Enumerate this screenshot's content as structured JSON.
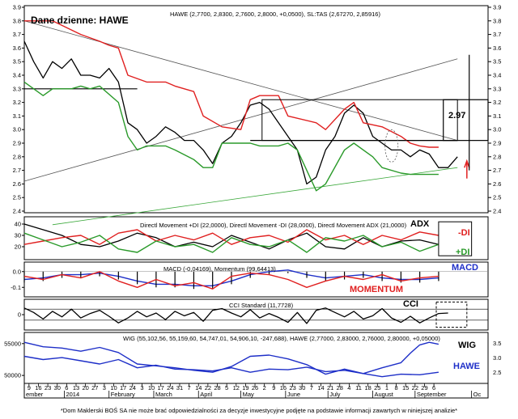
{
  "title": "Dane dzienne: HAWE",
  "footer": "*Dom Maklerski BOŚ SA nie może brać odpowiedzialności za decyzje inwestycyjne podjęte na podstawie informacji zawartych w niniejszej analizie*",
  "colors": {
    "price": "#000000",
    "upper": "#e02020",
    "lower": "#2a9a2a",
    "plus_di": "#2a9a2a",
    "minus_di": "#e02020",
    "adx": "#000000",
    "macd": "#1e2fc8",
    "momentum": "#e02020",
    "wig": "#1e2fc8",
    "trend": "#555555",
    "support": "#3aa83a",
    "annot_red": "#e02020",
    "annot_blue": "#1e2fc8"
  },
  "chart_data": [
    {
      "type": "line",
      "panel": "price",
      "legend": "HAWE (2,7700, 2,8300, 2,7600, 2,8000, +0,0500), SL:TAS (2,67270, 2,85916)",
      "ylim": [
        2.4,
        3.9
      ],
      "yticks": [
        "3.9",
        "3.8",
        "3.7",
        "3.6",
        "3.5",
        "3.4",
        "3.3",
        "3.2",
        "3.1",
        "3.0",
        "2.9",
        "2.8",
        "2.7",
        "2.6",
        "2.5",
        "2.4"
      ],
      "ytick_values": [
        3.9,
        3.8,
        3.7,
        3.6,
        3.5,
        3.4,
        3.3,
        3.2,
        3.1,
        3.0,
        2.9,
        2.8,
        2.7,
        2.6,
        2.5,
        2.4
      ],
      "annotation": "2.97",
      "series": [
        {
          "key": "close",
          "x": [
            0,
            4,
            8,
            12,
            16,
            20,
            24,
            28,
            32,
            36,
            40,
            44,
            48,
            52,
            56,
            60,
            64,
            68,
            72,
            76,
            80,
            84,
            88,
            92,
            96,
            100,
            104,
            108,
            112,
            116,
            120,
            124,
            128,
            132,
            136,
            140,
            144,
            148,
            152,
            156,
            160,
            164,
            168,
            172,
            176,
            180,
            184
          ],
          "y": [
            3.65,
            3.5,
            3.38,
            3.5,
            3.45,
            3.52,
            3.4,
            3.4,
            3.38,
            3.45,
            3.35,
            3.05,
            3.0,
            2.9,
            2.95,
            3.02,
            2.98,
            2.92,
            2.92,
            2.85,
            2.75,
            2.9,
            2.95,
            3.05,
            3.18,
            3.2,
            3.15,
            3.05,
            2.95,
            2.85,
            2.6,
            2.65,
            2.85,
            2.95,
            3.12,
            3.18,
            3.12,
            2.95,
            2.9,
            2.85,
            2.85,
            2.8,
            2.85,
            2.82,
            2.72,
            2.72,
            2.8
          ]
        },
        {
          "key": "upper",
          "x": [
            0,
            12,
            24,
            32,
            36,
            40,
            44,
            52,
            60,
            64,
            72,
            76,
            84,
            92,
            96,
            100,
            108,
            112,
            124,
            128,
            136,
            140,
            144,
            152,
            160,
            164,
            168,
            172,
            176
          ],
          "y": [
            3.8,
            3.8,
            3.7,
            3.65,
            3.62,
            3.6,
            3.4,
            3.35,
            3.35,
            3.32,
            3.28,
            3.1,
            3.02,
            3.0,
            3.22,
            3.25,
            3.25,
            3.1,
            3.05,
            3.0,
            3.15,
            3.2,
            3.05,
            3.02,
            2.95,
            2.9,
            2.88,
            2.87,
            2.87
          ]
        },
        {
          "key": "lower",
          "x": [
            0,
            8,
            12,
            20,
            24,
            28,
            32,
            40,
            44,
            48,
            52,
            60,
            64,
            72,
            76,
            80,
            84,
            88,
            96,
            100,
            108,
            112,
            116,
            120,
            124,
            128,
            136,
            140,
            148,
            152,
            160,
            164,
            168,
            172,
            176
          ],
          "y": [
            3.35,
            3.25,
            3.3,
            3.3,
            3.32,
            3.3,
            3.32,
            3.2,
            2.95,
            2.85,
            2.88,
            2.88,
            2.85,
            2.78,
            2.72,
            2.72,
            2.9,
            2.9,
            2.9,
            2.88,
            2.88,
            2.9,
            2.85,
            2.7,
            2.55,
            2.6,
            2.85,
            2.9,
            2.8,
            2.72,
            2.68,
            2.67,
            2.67,
            2.67,
            2.67
          ]
        }
      ],
      "trendlines": [
        {
          "key": "down",
          "x": [
            0,
            184
          ],
          "y": [
            3.8,
            2.92
          ]
        },
        {
          "key": "up",
          "x": [
            0,
            184
          ],
          "y": [
            2.62,
            3.52
          ]
        },
        {
          "key": "support",
          "x": [
            12,
            184
          ],
          "y": [
            2.3,
            2.72
          ]
        },
        {
          "key": "h33",
          "x": [
            0,
            48
          ],
          "y": [
            3.3,
            3.3
          ]
        },
        {
          "key": "h292",
          "x": [
            96,
            184
          ],
          "y": [
            2.92,
            2.92
          ]
        }
      ]
    },
    {
      "type": "line",
      "panel": "dmi",
      "legend": "Directl Movement +DI (22,0000), Directl Movement -DI (28,0000), Directl Movement ADX (21,0000)",
      "ylim": [
        10,
        45
      ],
      "yticks": [
        "40",
        "30",
        "20"
      ],
      "ytick_values": [
        40,
        30,
        20
      ],
      "labels": [
        "ADX",
        "-DI",
        "+DI"
      ],
      "series": [
        {
          "key": "adx",
          "x": [
            0,
            8,
            16,
            24,
            32,
            40,
            48,
            56,
            64,
            72,
            80,
            88,
            96,
            104,
            112,
            120,
            128,
            136,
            144,
            152,
            160,
            168,
            176
          ],
          "y": [
            40,
            35,
            30,
            22,
            20,
            25,
            32,
            28,
            20,
            24,
            20,
            30,
            24,
            18,
            26,
            32,
            20,
            18,
            28,
            20,
            25,
            26,
            22
          ]
        },
        {
          "key": "minus_di",
          "x": [
            0,
            8,
            16,
            24,
            32,
            40,
            48,
            56,
            64,
            72,
            80,
            88,
            96,
            104,
            112,
            120,
            128,
            136,
            144,
            152,
            160,
            168,
            176
          ],
          "y": [
            22,
            25,
            28,
            30,
            22,
            32,
            35,
            25,
            30,
            26,
            32,
            22,
            28,
            30,
            24,
            35,
            26,
            30,
            22,
            30,
            26,
            33,
            30
          ]
        },
        {
          "key": "plus_di",
          "x": [
            0,
            8,
            16,
            24,
            32,
            40,
            48,
            56,
            64,
            72,
            80,
            88,
            96,
            104,
            112,
            120,
            128,
            136,
            144,
            152,
            160,
            168,
            176
          ],
          "y": [
            32,
            26,
            20,
            24,
            30,
            18,
            15,
            25,
            20,
            22,
            15,
            28,
            22,
            20,
            26,
            15,
            28,
            25,
            30,
            20,
            24,
            16,
            22
          ]
        }
      ]
    },
    {
      "type": "line",
      "panel": "macd",
      "legend": "MACD (-0,04169), Momentum (99,64413)",
      "ylim": [
        -0.15,
        0.05
      ],
      "yticks": [
        "0.0",
        "-0.1"
      ],
      "ytick_values": [
        0.0,
        -0.1
      ],
      "labels": [
        "MACD",
        "MOMENTUM"
      ],
      "series": [
        {
          "key": "macd",
          "x": [
            0,
            8,
            16,
            24,
            32,
            40,
            48,
            56,
            64,
            72,
            80,
            88,
            96,
            104,
            112,
            120,
            128,
            136,
            144,
            152,
            160,
            168,
            176
          ],
          "y": [
            -0.05,
            -0.04,
            -0.02,
            -0.02,
            -0.01,
            -0.03,
            -0.06,
            -0.08,
            -0.08,
            -0.09,
            -0.09,
            -0.06,
            -0.02,
            0.0,
            0.01,
            -0.02,
            -0.04,
            -0.03,
            -0.02,
            -0.04,
            -0.05,
            -0.05,
            -0.04
          ]
        },
        {
          "key": "momentum",
          "x": [
            0,
            8,
            16,
            24,
            32,
            40,
            48,
            56,
            64,
            72,
            80,
            88,
            96,
            104,
            112,
            120,
            128,
            136,
            144,
            152,
            160,
            168,
            176
          ],
          "y": [
            -0.03,
            -0.05,
            -0.02,
            -0.04,
            0.0,
            -0.06,
            -0.1,
            -0.05,
            -0.09,
            -0.07,
            -0.11,
            -0.03,
            -0.01,
            -0.02,
            -0.05,
            -0.1,
            -0.06,
            -0.03,
            -0.05,
            -0.02,
            -0.06,
            -0.04,
            -0.03
          ]
        }
      ]
    },
    {
      "type": "line",
      "panel": "cci",
      "legend": "CCI Standard (11,7728)",
      "ylim": [
        -250,
        250
      ],
      "yticks": [
        "0"
      ],
      "ytick_values": [
        0
      ],
      "labels": [
        "CCI"
      ],
      "series": [
        {
          "key": "cci",
          "x": [
            0,
            4,
            8,
            12,
            16,
            20,
            24,
            28,
            32,
            36,
            40,
            44,
            48,
            52,
            56,
            60,
            64,
            68,
            72,
            76,
            80,
            84,
            88,
            92,
            96,
            100,
            104,
            108,
            112,
            116,
            120,
            124,
            128,
            132,
            136,
            140,
            144,
            148,
            152,
            156,
            160,
            164,
            168,
            172,
            176,
            180
          ],
          "y": [
            120,
            40,
            -80,
            60,
            -40,
            100,
            -60,
            20,
            80,
            -30,
            -150,
            -60,
            60,
            -40,
            30,
            -90,
            60,
            -20,
            40,
            -120,
            80,
            110,
            30,
            -40,
            90,
            -60,
            20,
            -50,
            -140,
            40,
            -160,
            80,
            120,
            40,
            -40,
            60,
            -80,
            -20,
            110,
            -60,
            -140,
            -30,
            -150,
            -60,
            20,
            30
          ]
        }
      ]
    },
    {
      "type": "line",
      "panel": "wig",
      "legend": "WIG (55,102,56, 55,159,60, 54,747,01, 54,906,10, -247,688), HAWE (2,77000, 2,83000, 2,76000, 2,80000, +0,05000)",
      "ylim": [
        49000,
        56500
      ],
      "yticks": [
        "55000",
        "50000"
      ],
      "ytick_values": [
        55000,
        50000
      ],
      "ytick_right": [
        "3.5",
        "3.0",
        "2.5"
      ],
      "labels": [
        "WIG",
        "HAWE"
      ],
      "series": [
        {
          "key": "wig",
          "x": [
            0,
            8,
            16,
            24,
            32,
            40,
            48,
            56,
            64,
            72,
            80,
            88,
            96,
            104,
            112,
            120,
            128,
            136,
            144,
            152,
            160,
            164,
            168,
            172,
            176
          ],
          "y": [
            53000,
            52500,
            52800,
            52300,
            51800,
            52500,
            51200,
            51600,
            51000,
            50900,
            50700,
            51200,
            50500,
            51000,
            50900,
            51300,
            50600,
            50800,
            50300,
            51200,
            52000,
            53500,
            54800,
            55200,
            54900
          ]
        },
        {
          "key": "hawe",
          "x": [
            0,
            8,
            16,
            24,
            32,
            40,
            48,
            56,
            64,
            72,
            80,
            88,
            96,
            104,
            112,
            120,
            128,
            136,
            144,
            152,
            160,
            168,
            176
          ],
          "y": [
            55200,
            54500,
            54300,
            53800,
            54400,
            53600,
            51800,
            51500,
            51200,
            50800,
            50500,
            51400,
            53000,
            53200,
            52600,
            51700,
            50200,
            51000,
            50300,
            49800,
            50200,
            50100,
            50500
          ]
        }
      ]
    }
  ],
  "x_axis": {
    "x_range": [
      0,
      197
    ],
    "day_ticks": [
      "9",
      "16",
      "23",
      "30",
      "6",
      "13",
      "20",
      "27",
      "3",
      "10",
      "17",
      "24",
      "3",
      "10",
      "17",
      "24",
      "31",
      "7",
      "14",
      "22",
      "28",
      "5",
      "12",
      "19",
      "26",
      "2",
      "9",
      "16",
      "23",
      "30",
      "7",
      "14",
      "21",
      "28",
      "4",
      "11",
      "18",
      "25",
      "1",
      "8",
      "15",
      "22",
      "29",
      "6"
    ],
    "day_x": [
      2,
      6,
      10,
      14,
      18,
      22,
      26,
      30,
      34,
      38,
      42,
      46,
      50,
      54,
      58,
      62,
      66,
      70,
      74,
      78,
      82,
      86,
      90,
      94,
      98,
      102,
      106,
      110,
      114,
      118,
      122,
      126,
      130,
      134,
      138,
      142,
      146,
      150,
      154,
      158,
      162,
      166,
      170,
      174
    ],
    "months": [
      "ember",
      "2014",
      "February",
      "March",
      "April",
      "May",
      "June",
      "July",
      "August",
      "September",
      "Oc"
    ],
    "month_x": [
      0,
      17,
      36,
      55,
      74,
      92,
      111,
      129,
      148,
      166,
      190
    ]
  }
}
